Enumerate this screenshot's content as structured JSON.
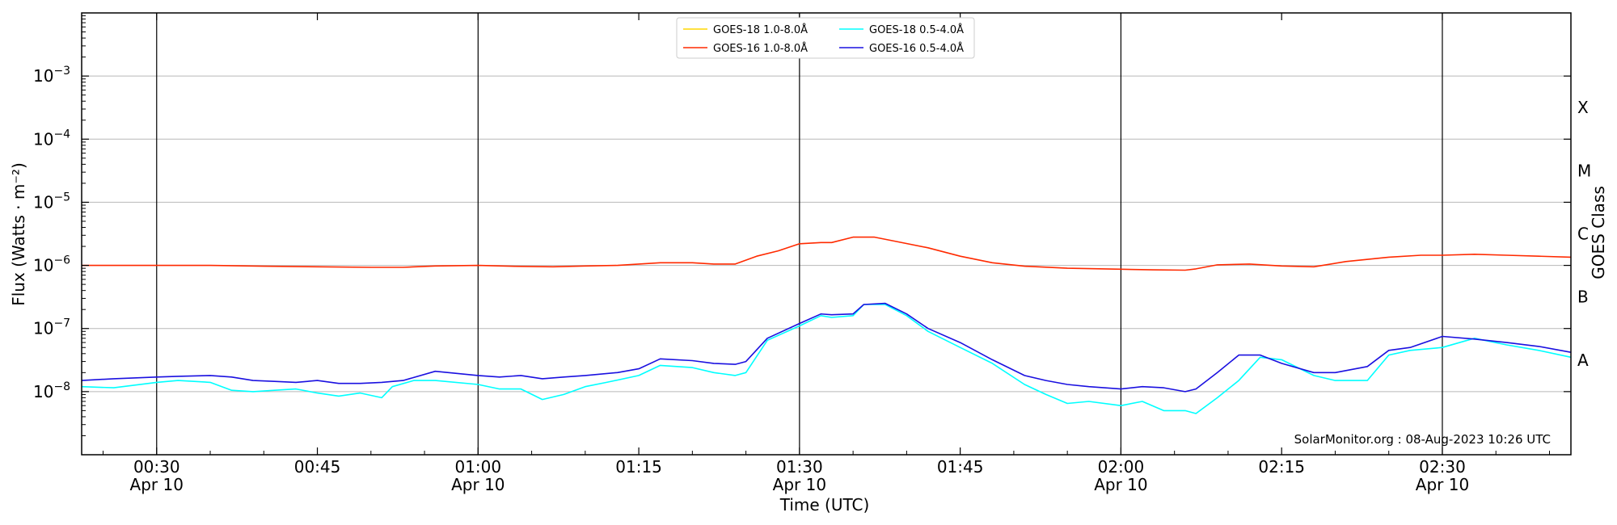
{
  "chart_data": {
    "type": "line",
    "title": "",
    "xlabel": "Time (UTC)",
    "ylabel": "Flux (Watts · m⁻²)",
    "y2label": "GOES Class",
    "yscale": "log",
    "ylim": [
      1e-09,
      0.01
    ],
    "xlim": [
      "00:23",
      "02:42"
    ],
    "x_ticks": [
      {
        "time": "00:30",
        "label": "00:30",
        "date": "Apr 10"
      },
      {
        "time": "00:45",
        "label": "00:45",
        "date": ""
      },
      {
        "time": "01:00",
        "label": "01:00",
        "date": "Apr 10"
      },
      {
        "time": "01:15",
        "label": "01:15",
        "date": ""
      },
      {
        "time": "01:30",
        "label": "01:30",
        "date": "Apr 10"
      },
      {
        "time": "01:45",
        "label": "01:45",
        "date": ""
      },
      {
        "time": "02:00",
        "label": "02:00",
        "date": "Apr 10"
      },
      {
        "time": "02:15",
        "label": "02:15",
        "date": ""
      },
      {
        "time": "02:30",
        "label": "02:30",
        "date": "Apr 10"
      }
    ],
    "vlines": [
      "00:30",
      "01:00",
      "01:30",
      "02:00",
      "02:30"
    ],
    "y_ticks": [
      {
        "exp": -8,
        "label": "10",
        "sup": "−8"
      },
      {
        "exp": -7,
        "label": "10",
        "sup": "−7"
      },
      {
        "exp": -6,
        "label": "10",
        "sup": "−6"
      },
      {
        "exp": -5,
        "label": "10",
        "sup": "−5"
      },
      {
        "exp": -4,
        "label": "10",
        "sup": "−4"
      },
      {
        "exp": -3,
        "label": "10",
        "sup": "−3"
      }
    ],
    "goes_classes": [
      {
        "label": "A",
        "exp": -7.5
      },
      {
        "label": "B",
        "exp": -6.5
      },
      {
        "label": "C",
        "exp": -5.5
      },
      {
        "label": "M",
        "exp": -4.5
      },
      {
        "label": "X",
        "exp": -3.5
      }
    ],
    "grid": "horizontal",
    "legend_position": "top-center",
    "credit": "SolarMonitor.org : 08-Aug-2023 10:26 UTC",
    "series": [
      {
        "name": "GOES-18 1.0-8.0Å",
        "color": "#ffd700",
        "x": [],
        "y": []
      },
      {
        "name": "GOES-16 1.0-8.0Å",
        "color": "#ff2a00",
        "x": [
          "00:23",
          "00:30",
          "00:35",
          "00:40",
          "00:45",
          "00:50",
          "00:53",
          "00:56",
          "01:00",
          "01:03",
          "01:07",
          "01:10",
          "01:13",
          "01:15",
          "01:17",
          "01:20",
          "01:22",
          "01:24",
          "01:26",
          "01:28",
          "01:30",
          "01:32",
          "01:33",
          "01:35",
          "01:37",
          "01:39",
          "01:42",
          "01:45",
          "01:48",
          "01:51",
          "01:55",
          "02:00",
          "02:03",
          "02:06",
          "02:07",
          "02:09",
          "02:12",
          "02:15",
          "02:18",
          "02:21",
          "02:25",
          "02:28",
          "02:30",
          "02:33",
          "02:36",
          "02:39",
          "02:42"
        ],
        "y": [
          1e-06,
          1e-06,
          1e-06,
          9.7e-07,
          9.5e-07,
          9.3e-07,
          9.3e-07,
          9.8e-07,
          1e-06,
          9.7e-07,
          9.5e-07,
          9.8e-07,
          1e-06,
          1.05e-06,
          1.1e-06,
          1.1e-06,
          1.05e-06,
          1.05e-06,
          1.4e-06,
          1.7e-06,
          2.2e-06,
          2.3e-06,
          2.3e-06,
          2.8e-06,
          2.8e-06,
          2.4e-06,
          1.9e-06,
          1.4e-06,
          1.1e-06,
          9.7e-07,
          9e-07,
          8.7e-07,
          8.5e-07,
          8.4e-07,
          8.8e-07,
          1.02e-06,
          1.05e-06,
          9.8e-07,
          9.5e-07,
          1.15e-06,
          1.35e-06,
          1.45e-06,
          1.45e-06,
          1.5e-06,
          1.45e-06,
          1.4e-06,
          1.35e-06
        ]
      },
      {
        "name": "GOES-18 0.5-4.0Å",
        "color": "#00ffff",
        "x": [
          "00:23",
          "00:26",
          "00:30",
          "00:32",
          "00:35",
          "00:37",
          "00:39",
          "00:41",
          "00:43",
          "00:45",
          "00:47",
          "00:49",
          "00:51",
          "00:52",
          "00:54",
          "00:56",
          "01:00",
          "01:02",
          "01:04",
          "01:06",
          "01:08",
          "01:10",
          "01:12",
          "01:15",
          "01:17",
          "01:20",
          "01:22",
          "01:24",
          "01:25",
          "01:27",
          "01:30",
          "01:32",
          "01:33",
          "01:35",
          "01:36",
          "01:38",
          "01:40",
          "01:42",
          "01:45",
          "01:48",
          "01:51",
          "01:53",
          "01:55",
          "01:57",
          "02:00",
          "02:02",
          "02:04",
          "02:06",
          "02:07",
          "02:09",
          "02:11",
          "02:13",
          "02:15",
          "02:18",
          "02:20",
          "02:23",
          "02:25",
          "02:27",
          "02:30",
          "02:33",
          "02:36",
          "02:39",
          "02:42"
        ],
        "y": [
          1.2e-08,
          1.15e-08,
          1.4e-08,
          1.5e-08,
          1.4e-08,
          1.05e-08,
          1e-08,
          1.05e-08,
          1.1e-08,
          9.5e-09,
          8.5e-09,
          9.5e-09,
          8e-09,
          1.2e-08,
          1.5e-08,
          1.5e-08,
          1.3e-08,
          1.1e-08,
          1.1e-08,
          7.5e-09,
          9e-09,
          1.2e-08,
          1.4e-08,
          1.8e-08,
          2.6e-08,
          2.4e-08,
          2e-08,
          1.8e-08,
          2e-08,
          6.5e-08,
          1.1e-07,
          1.6e-07,
          1.5e-07,
          1.6e-07,
          2.4e-07,
          2.4e-07,
          1.6e-07,
          9e-08,
          5e-08,
          2.8e-08,
          1.3e-08,
          9e-09,
          6.5e-09,
          7e-09,
          6e-09,
          7e-09,
          5e-09,
          5e-09,
          4.5e-09,
          8e-09,
          1.5e-08,
          3.5e-08,
          3.2e-08,
          1.8e-08,
          1.5e-08,
          1.5e-08,
          3.8e-08,
          4.5e-08,
          5e-08,
          7e-08,
          5.5e-08,
          4.5e-08,
          3.5e-08
        ]
      },
      {
        "name": "GOES-16 0.5-4.0Å",
        "color": "#1a10e0",
        "x": [
          "00:23",
          "00:26",
          "00:30",
          "00:32",
          "00:35",
          "00:37",
          "00:39",
          "00:41",
          "00:43",
          "00:45",
          "00:47",
          "00:49",
          "00:51",
          "00:53",
          "00:56",
          "01:00",
          "01:02",
          "01:04",
          "01:06",
          "01:08",
          "01:10",
          "01:13",
          "01:15",
          "01:17",
          "01:20",
          "01:22",
          "01:24",
          "01:25",
          "01:27",
          "01:30",
          "01:32",
          "01:33",
          "01:35",
          "01:36",
          "01:38",
          "01:40",
          "01:42",
          "01:45",
          "01:48",
          "01:51",
          "01:53",
          "01:55",
          "01:57",
          "02:00",
          "02:02",
          "02:04",
          "02:06",
          "02:07",
          "02:09",
          "02:11",
          "02:13",
          "02:15",
          "02:18",
          "02:20",
          "02:23",
          "02:25",
          "02:27",
          "02:30",
          "02:33",
          "02:36",
          "02:39",
          "02:42"
        ],
        "y": [
          1.5e-08,
          1.6e-08,
          1.7e-08,
          1.75e-08,
          1.8e-08,
          1.7e-08,
          1.5e-08,
          1.45e-08,
          1.4e-08,
          1.5e-08,
          1.35e-08,
          1.35e-08,
          1.4e-08,
          1.5e-08,
          2.1e-08,
          1.8e-08,
          1.7e-08,
          1.8e-08,
          1.6e-08,
          1.7e-08,
          1.8e-08,
          2e-08,
          2.3e-08,
          3.3e-08,
          3.1e-08,
          2.8e-08,
          2.7e-08,
          3e-08,
          7e-08,
          1.2e-07,
          1.7e-07,
          1.65e-07,
          1.7e-07,
          2.4e-07,
          2.5e-07,
          1.7e-07,
          1e-07,
          6e-08,
          3.2e-08,
          1.8e-08,
          1.5e-08,
          1.3e-08,
          1.2e-08,
          1.1e-08,
          1.2e-08,
          1.15e-08,
          1e-08,
          1.1e-08,
          2e-08,
          3.8e-08,
          3.8e-08,
          2.8e-08,
          2e-08,
          2e-08,
          2.5e-08,
          4.5e-08,
          5e-08,
          7.5e-08,
          6.8e-08,
          6e-08,
          5.2e-08,
          4.2e-08
        ]
      }
    ]
  }
}
